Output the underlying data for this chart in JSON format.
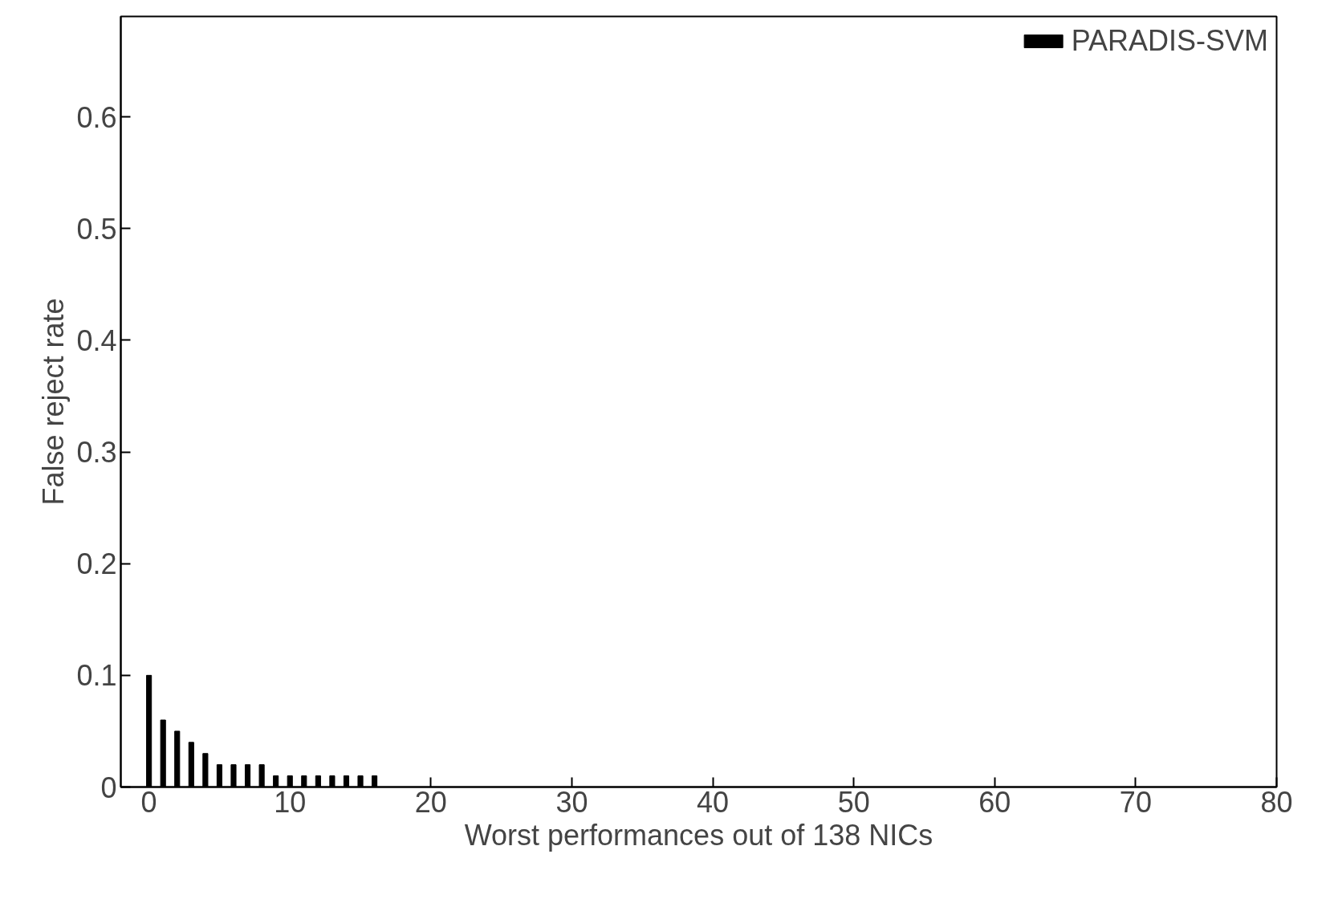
{
  "chart_data": {
    "type": "bar",
    "xlabel": "Worst performances out of 138 NICs",
    "ylabel": "False reject rate",
    "x": [
      0,
      1,
      2,
      3,
      4,
      5,
      6,
      7,
      8,
      9,
      10,
      11,
      12,
      13,
      14,
      15,
      16
    ],
    "series": [
      {
        "name": "PARADIS-SVM",
        "color": "#000000",
        "values": [
          0.1,
          0.06,
          0.05,
          0.04,
          0.03,
          0.02,
          0.02,
          0.02,
          0.02,
          0.01,
          0.01,
          0.01,
          0.01,
          0.01,
          0.01,
          0.01,
          0.01
        ]
      }
    ],
    "xlim": [
      -2,
      80
    ],
    "ylim": [
      0,
      0.69
    ],
    "xticks": [
      0,
      10,
      20,
      30,
      40,
      50,
      60,
      70,
      80
    ],
    "yticks": [
      0,
      0.1,
      0.2,
      0.3,
      0.4,
      0.5,
      0.6
    ],
    "legend": "top right"
  }
}
